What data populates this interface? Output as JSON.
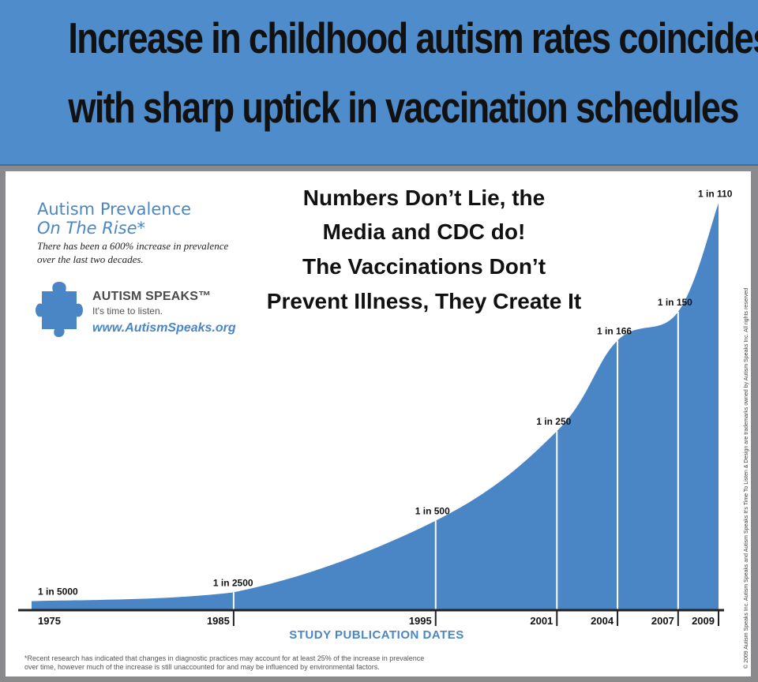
{
  "banner": {
    "line1": "Increase in childhood autism rates coincides",
    "line2": "with sharp uptick in vaccination schedules"
  },
  "panel": {
    "prevalence_title_1": "Autism Prevalence",
    "prevalence_title_2": "On The Rise*",
    "prevalence_desc_1": "There has been a 600% increase in prevalence",
    "prevalence_desc_2": "over the last two decades.",
    "logo_name": "AUTISM SPEAKS™",
    "logo_tagline": "It's time to listen.",
    "logo_url": "www.AutismSpeaks.org",
    "overlay": [
      "Numbers Don’t Lie, the",
      "Media and CDC do!",
      "The Vaccinations Don’t",
      "Prevent Illness, They Create It"
    ],
    "footnote_1": "*Recent research has indicated that changes in diagnostic practices may account for at least 25% of the increase in prevalence",
    "footnote_2": "over time, however much of the increase is still unaccounted for and may be influenced by environmental factors.",
    "copyright": "© 2009 Autism Speaks Inc. Autism Speaks and Autism Speaks It's Time To Listen & Design are trademarks owned by Autism Speaks Inc. All rights reserved"
  },
  "colors": {
    "banner": "#4f8ccc",
    "area": "#4a86c5",
    "axis": "#222222"
  },
  "chart_data": {
    "type": "area",
    "xlabel": "STUDY PUBLICATION DATES",
    "ylabel": "",
    "x": [
      1975,
      1985,
      1995,
      2001,
      2004,
      2007,
      2009
    ],
    "tick_labels": [
      "1975",
      "1985",
      "1995",
      "2001",
      "2004",
      "2007",
      "2009"
    ],
    "values": [
      0.0002,
      0.0004,
      0.002,
      0.004,
      0.006024,
      0.006667,
      0.009091
    ],
    "data_labels": [
      "1 in 5000",
      "1 in 2500",
      "1 in 500",
      "1 in 250",
      "1 in 166",
      "1 in 150",
      "1 in 110"
    ],
    "xlim": [
      1975,
      2009
    ],
    "ylim": [
      0,
      0.0091
    ],
    "grid": false,
    "legend": "none"
  }
}
